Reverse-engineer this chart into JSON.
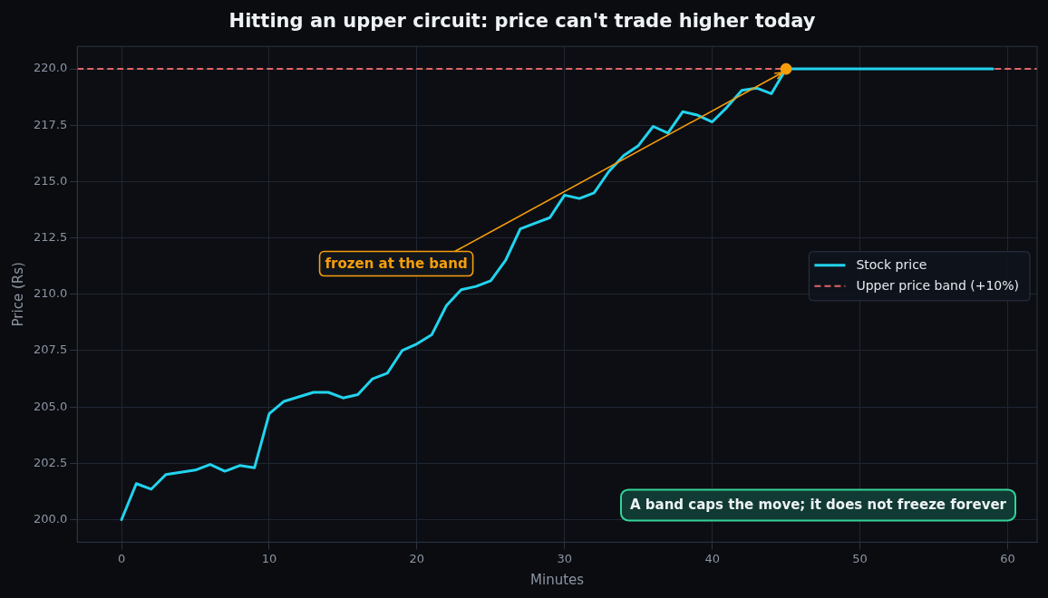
{
  "chart_data": {
    "type": "line",
    "title": "Hitting an upper circuit: price can't trade higher today",
    "xlabel": "Minutes",
    "ylabel": "Price (Rs)",
    "x": [
      0,
      1,
      2,
      3,
      4,
      5,
      6,
      7,
      8,
      9,
      10,
      11,
      12,
      13,
      14,
      15,
      16,
      17,
      18,
      19,
      20,
      21,
      22,
      23,
      24,
      25,
      26,
      27,
      28,
      29,
      30,
      31,
      32,
      33,
      34,
      35,
      36,
      37,
      38,
      39,
      40,
      41,
      42,
      43,
      44,
      45,
      46,
      47,
      48,
      49,
      50,
      51,
      52,
      53,
      54,
      55,
      56,
      57,
      58,
      59
    ],
    "series": [
      {
        "name": "Stock price",
        "color": "#22d3ee",
        "values": [
          200.0,
          201.6,
          201.35,
          202.0,
          202.1,
          202.2,
          202.45,
          202.15,
          202.4,
          202.3,
          204.7,
          205.25,
          205.45,
          205.65,
          205.65,
          205.4,
          205.55,
          206.25,
          206.5,
          207.5,
          207.8,
          208.2,
          209.5,
          210.2,
          210.35,
          210.6,
          211.5,
          212.9,
          213.15,
          213.4,
          214.4,
          214.25,
          214.5,
          215.45,
          216.15,
          216.6,
          217.45,
          217.15,
          218.1,
          217.95,
          217.65,
          218.3,
          219.05,
          219.15,
          218.9,
          220,
          220,
          220,
          220,
          220,
          220,
          220,
          220,
          220,
          220,
          220,
          220,
          220,
          220,
          220
        ]
      },
      {
        "type": "scatter",
        "color": "#f59e0b",
        "x": [
          45
        ],
        "values": [
          220
        ],
        "marker": "circle"
      }
    ],
    "ref_lines": [
      {
        "axis": "y",
        "value": 220,
        "label": "Upper price band (+10%)",
        "color": "#e06666",
        "line_style": "dashed"
      }
    ],
    "annotations": [
      {
        "text": "frozen at the band",
        "x": 45,
        "y": 220
      },
      "A band caps the move; it does not freeze forever"
    ],
    "xlim": [
      -3,
      62
    ],
    "ylim": [
      199,
      221
    ],
    "xticks": [
      0,
      10,
      20,
      30,
      40,
      50,
      60
    ],
    "yticks": [
      {
        "value": 200,
        "label": "200.0"
      },
      {
        "value": 202.5,
        "label": "202.5"
      },
      {
        "value": 205,
        "label": "205.0"
      },
      {
        "value": 207.5,
        "label": "207.5"
      },
      {
        "value": 210,
        "label": "210.0"
      },
      {
        "value": 212.5,
        "label": "212.5"
      },
      {
        "value": 215,
        "label": "215.0"
      },
      {
        "value": 217.5,
        "label": "217.5"
      },
      {
        "value": 220,
        "label": "220.0"
      }
    ],
    "grid": true,
    "legend": "right",
    "marker": "none",
    "line_style": "solid"
  }
}
